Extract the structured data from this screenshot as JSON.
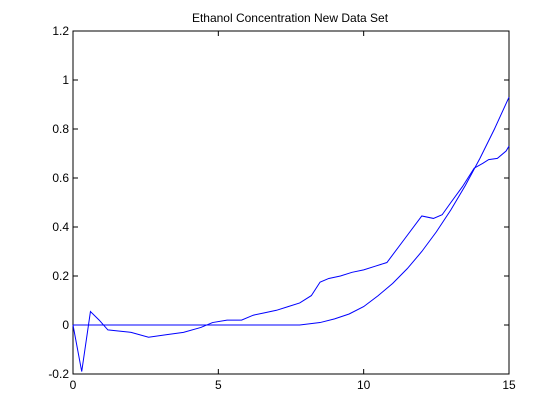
{
  "chart_data": {
    "type": "line",
    "title": "Ethanol Concentration New Data Set",
    "xlabel": "",
    "ylabel": "",
    "xlim": [
      0,
      15
    ],
    "ylim": [
      -0.2,
      1.2
    ],
    "xticks": [
      0,
      5,
      10,
      15
    ],
    "yticks": [
      -0.2,
      0,
      0.2,
      0.4,
      0.6,
      0.8,
      1,
      1.2
    ],
    "xtick_labels": [
      "0",
      "5",
      "10",
      "15"
    ],
    "ytick_labels": [
      "-0.2",
      "0",
      "0.2",
      "0.4",
      "0.6",
      "0.8",
      "1",
      "1.2"
    ],
    "grid": false,
    "line_color": "#0000ff",
    "series": [
      {
        "x": [
          0,
          0.3,
          0.6,
          0.9,
          1.2,
          1.6,
          2.0,
          2.6,
          3.2,
          3.8,
          4.4,
          4.8,
          5.3,
          5.8,
          6.2,
          6.6,
          7.0,
          7.4,
          7.8,
          8.2,
          8.5,
          8.8,
          9.2,
          9.6,
          10.0,
          10.4,
          10.8,
          11.4,
          12.0,
          12.4,
          12.7,
          13.0,
          13.4,
          13.8,
          14.1,
          14.3,
          14.6,
          14.9,
          15.0
        ],
        "y": [
          0,
          -0.19,
          0.055,
          0.02,
          -0.02,
          -0.025,
          -0.03,
          -0.05,
          -0.04,
          -0.03,
          -0.01,
          0.01,
          0.02,
          0.02,
          0.04,
          0.05,
          0.06,
          0.075,
          0.09,
          0.12,
          0.175,
          0.19,
          0.2,
          0.215,
          0.225,
          0.24,
          0.255,
          0.35,
          0.445,
          0.435,
          0.45,
          0.5,
          0.565,
          0.64,
          0.66,
          0.675,
          0.68,
          0.71,
          0.73
        ]
      },
      {
        "x": [
          0,
          1,
          2,
          3,
          4,
          5,
          6,
          7,
          7.8,
          8.5,
          9.0,
          9.5,
          10.0,
          10.5,
          11.0,
          11.5,
          12.0,
          12.5,
          13.0,
          13.5,
          14.0,
          14.5,
          15.0
        ],
        "y": [
          0,
          0,
          0,
          0,
          0,
          0,
          0,
          0,
          0,
          0.01,
          0.025,
          0.045,
          0.075,
          0.12,
          0.17,
          0.23,
          0.3,
          0.38,
          0.47,
          0.57,
          0.68,
          0.8,
          0.93
        ]
      }
    ]
  }
}
